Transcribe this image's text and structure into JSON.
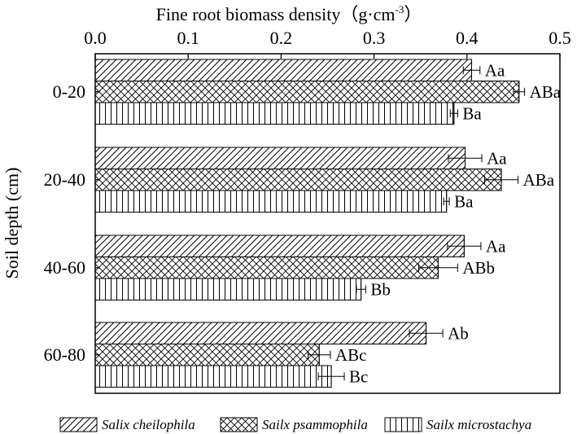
{
  "chart_data": {
    "type": "bar",
    "orientation": "horizontal",
    "title": "",
    "xlabel": "Fine root biomass density（g·cm",
    "xlabel_superscript": "-3",
    "xlabel_close": "）",
    "ylabel": "Soil depth (cm)",
    "xlim": [
      0.0,
      0.5
    ],
    "xticks": [
      0.0,
      0.1,
      0.2,
      0.3,
      0.4,
      0.5
    ],
    "xtick_labels": [
      "0.0",
      "0.1",
      "0.2",
      "0.3",
      "0.4",
      "0.5"
    ],
    "x_axis_position": "top",
    "categories": [
      "0-20",
      "20-40",
      "40-60",
      "60-80"
    ],
    "series": [
      {
        "name": "Salix cheilophila",
        "pattern": "diagonal",
        "values": [
          0.405,
          0.398,
          0.397,
          0.356
        ],
        "errors": [
          0.009,
          0.018,
          0.018,
          0.018
        ],
        "labels": [
          "Aa",
          "Aa",
          "Aa",
          "Ab"
        ]
      },
      {
        "name": "Sailx psammophila",
        "pattern": "crosshatch",
        "values": [
          0.456,
          0.437,
          0.369,
          0.241
        ],
        "errors": [
          0.006,
          0.018,
          0.021,
          0.012
        ],
        "labels": [
          "ABa",
          "ABa",
          "ABb",
          "ABc"
        ]
      },
      {
        "name": "Sailx microstachya",
        "pattern": "vertical",
        "values": [
          0.386,
          0.378,
          0.286,
          0.254
        ],
        "errors": [
          0.004,
          0.003,
          0.005,
          0.014
        ],
        "labels": [
          "Ba",
          "Ba",
          "Bb",
          "Bc"
        ]
      }
    ],
    "grid": false,
    "legend": {
      "position": "bottom"
    }
  }
}
